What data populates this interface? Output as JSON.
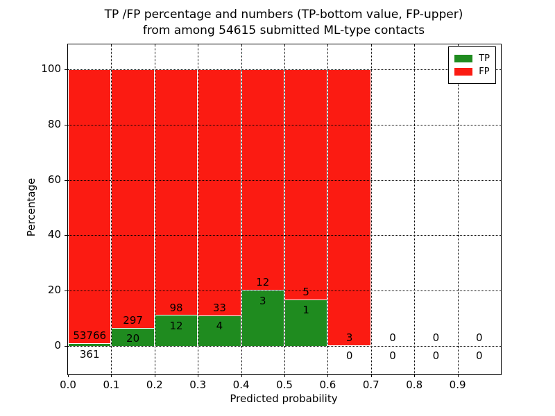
{
  "title": {
    "line1": "TP /FP percentage and numbers (TP-bottom value, FP-upper)",
    "line2": "from among 54615 submitted ML-type contacts"
  },
  "y_axis": {
    "label": "Percentage",
    "tick_labels": [
      "0",
      "20",
      "40",
      "60",
      "80",
      "100"
    ]
  },
  "x_axis": {
    "label": "Predicted probability",
    "tick_labels": [
      "0.0",
      "0.1",
      "0.2",
      "0.3",
      "0.4",
      "0.5",
      "0.6",
      "0.7",
      "0.8",
      "0.9"
    ]
  },
  "legend": {
    "items": [
      {
        "label": "TP",
        "color": "#1f8b1f"
      },
      {
        "label": "FP",
        "color": "#fb1b12"
      }
    ]
  },
  "chart_data": {
    "type": "bar",
    "stacked": true,
    "title": "TP /FP percentage and numbers (TP-bottom value, FP-upper) from among 54615 submitted ML-type contacts",
    "xlabel": "Predicted probability",
    "ylabel": "Percentage",
    "total_contacts": 54615,
    "categories": [
      "0.0-0.1",
      "0.1-0.2",
      "0.2-0.3",
      "0.3-0.4",
      "0.4-0.5",
      "0.5-0.6",
      "0.6-0.7",
      "0.7-0.8",
      "0.8-0.9",
      "0.9-1.0"
    ],
    "bin_left_edges": [
      0.0,
      0.1,
      0.2,
      0.3,
      0.4,
      0.5,
      0.6,
      0.7,
      0.8,
      0.9
    ],
    "series": [
      {
        "name": "TP",
        "color": "#1f8b1f",
        "counts": [
          361,
          20,
          12,
          4,
          3,
          1,
          0,
          0,
          0,
          0
        ]
      },
      {
        "name": "FP",
        "color": "#fb1b12",
        "counts": [
          53766,
          297,
          98,
          33,
          12,
          5,
          3,
          0,
          0,
          0
        ]
      }
    ],
    "bar_heights_are": "percent share within bin; TP% bottom, FP% top, summing to 100 for non-empty bins",
    "tp_percent_per_bin": [
      0.67,
      6.31,
      10.91,
      10.81,
      20.0,
      16.67,
      0.0,
      null,
      null,
      null
    ],
    "yticks": [
      0,
      20,
      40,
      60,
      80,
      100
    ],
    "ylim": [
      -10.3,
      109
    ],
    "xlim": [
      0.0,
      1.0
    ],
    "grid": "dotted",
    "legend_position": "upper right"
  }
}
